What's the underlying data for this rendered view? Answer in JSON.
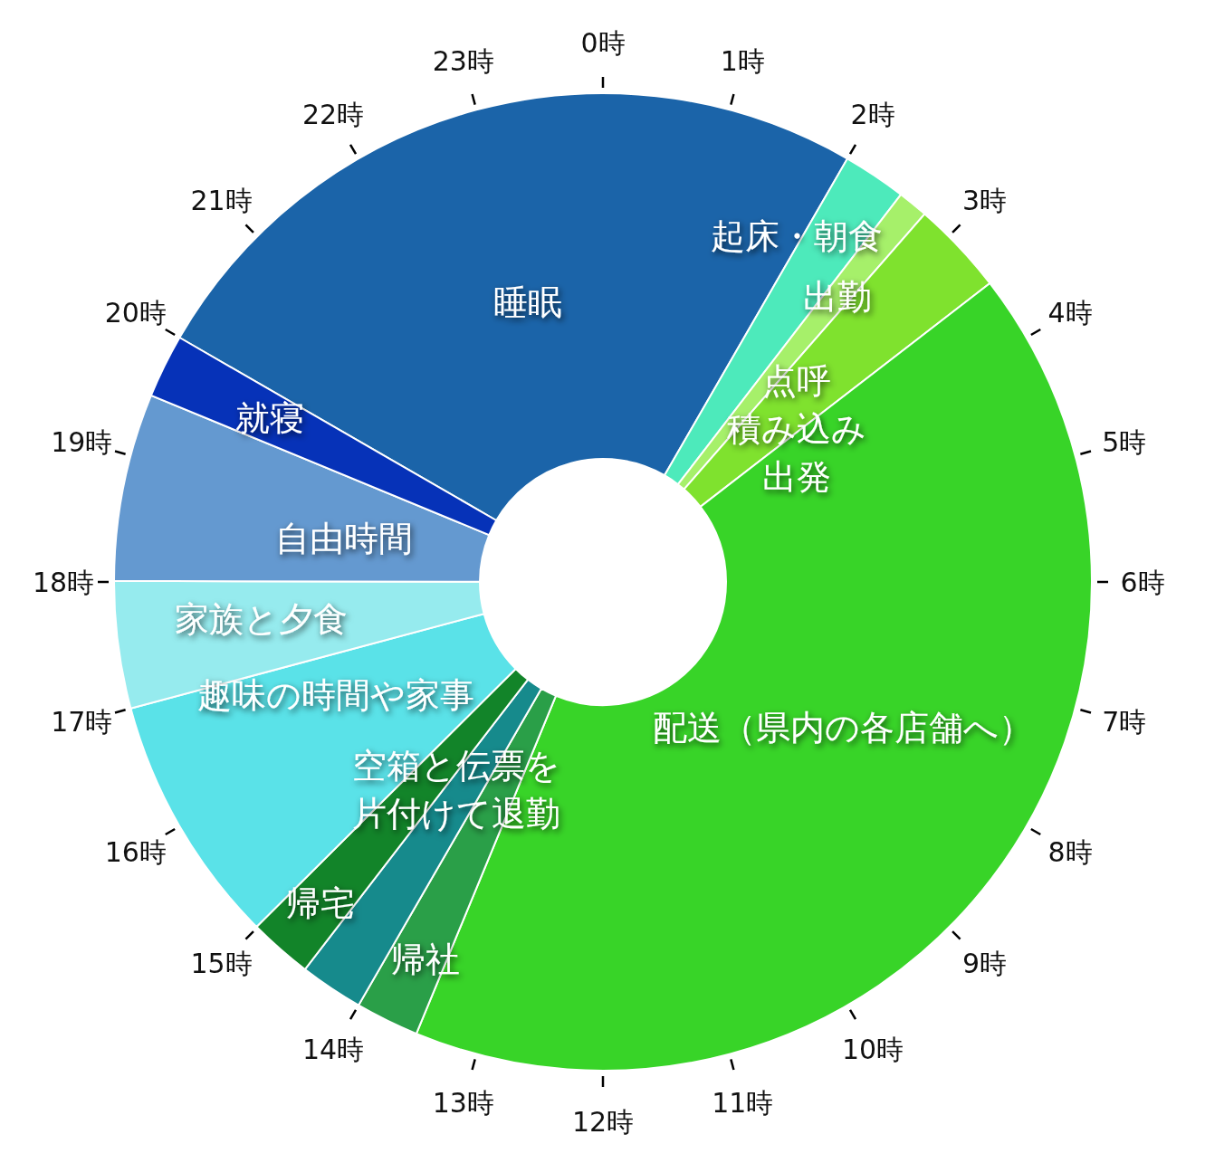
{
  "chart_data": {
    "type": "donut",
    "categories": [
      "睡眠",
      "起床・朝食",
      "出勤",
      "点呼積み込み出発",
      "配送（県内の各店舗へ）",
      "帰社",
      "空箱と伝票を片付けて退勤",
      "帰宅",
      "趣味の時間や家事",
      "家族と夕食",
      "自由時間",
      "就寝"
    ],
    "values": [
      25,
      2.1,
      1,
      3.1,
      41.7,
      2.1,
      2.1,
      2.1,
      8.3,
      4.2,
      6.2,
      2.1
    ],
    "colors": [
      "#1b64a9",
      "#4deabb",
      "#a6f06a",
      "#7fe22e",
      "#38d428",
      "#2a9f48",
      "#168a8c",
      "#128429",
      "#5ae2e8",
      "#96ebee",
      "#6499d0",
      "#0632b8"
    ],
    "annotations": [
      "0時",
      "1時",
      "2時",
      "3時",
      "4時",
      "5時",
      "6時",
      "7時",
      "8時",
      "9時",
      "10時",
      "11時",
      "12時",
      "13時",
      "14時",
      "15時",
      "16時",
      "17時",
      "18時",
      "19時",
      "20時",
      "21時",
      "22時",
      "23時"
    ]
  }
}
